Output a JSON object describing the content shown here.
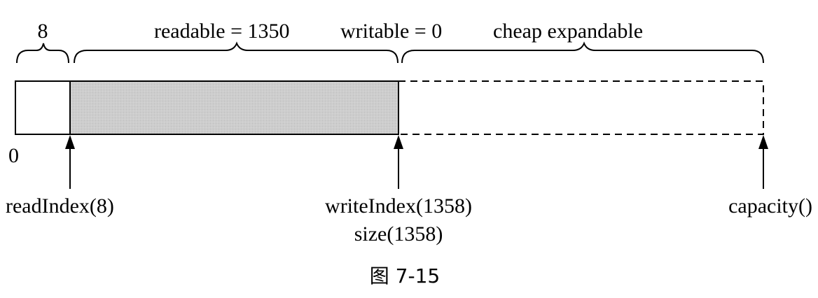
{
  "diagram": {
    "labels": {
      "prepend_size": "8",
      "readable": "readable = 1350",
      "writable": "writable = 0",
      "expandable": "cheap expandable",
      "zero": "0",
      "read_index": "readIndex(8)",
      "write_index": "writeIndex(1358)",
      "size": "size(1358)",
      "capacity": "capacity()"
    },
    "caption": "图 7-15",
    "colors": {
      "readable_fill": "#c8c8c8",
      "stroke": "#000000"
    }
  }
}
